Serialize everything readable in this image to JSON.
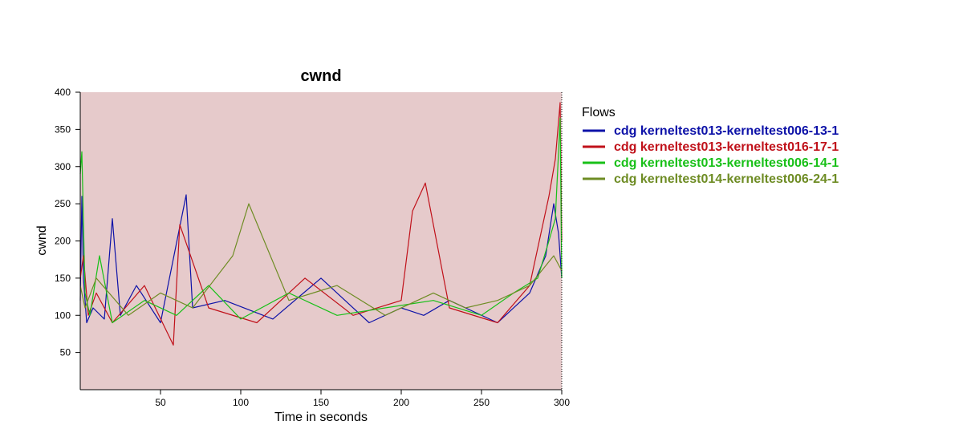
{
  "chart_data": {
    "type": "line",
    "title": "cwnd",
    "xlabel": "Time in seconds",
    "ylabel": "cwnd",
    "xlim": [
      0,
      300
    ],
    "ylim": [
      0,
      400
    ],
    "x_ticks": [
      50,
      100,
      150,
      200,
      250,
      300
    ],
    "y_ticks": [
      50,
      100,
      150,
      200,
      250,
      300,
      350,
      400
    ],
    "grid": false,
    "plot_background": "#e6cacb",
    "legend": {
      "title": "Flows",
      "placement": "right"
    },
    "series": [
      {
        "name": "cdg kerneltest013-kerneltest006-13-1",
        "color": "#0d12a8",
        "x": [
          0,
          1,
          2,
          4,
          8,
          15,
          20,
          25,
          35,
          50,
          66,
          70,
          90,
          120,
          150,
          180,
          200,
          214,
          230,
          260,
          280,
          290,
          295,
          298,
          300
        ],
        "y": [
          120,
          260,
          150,
          90,
          110,
          95,
          230,
          100,
          140,
          90,
          262,
          110,
          120,
          95,
          150,
          90,
          110,
          100,
          120,
          90,
          130,
          180,
          250,
          210,
          150
        ]
      },
      {
        "name": "cdg kerneltest013-kerneltest016-17-1",
        "color": "#c0111a",
        "x": [
          0,
          2,
          5,
          10,
          20,
          40,
          58,
          62,
          80,
          110,
          140,
          170,
          200,
          207,
          215,
          230,
          260,
          280,
          292,
          296,
          299,
          300
        ],
        "y": [
          150,
          180,
          100,
          130,
          90,
          140,
          60,
          222,
          110,
          90,
          150,
          100,
          120,
          240,
          278,
          110,
          90,
          140,
          260,
          310,
          386,
          200
        ]
      },
      {
        "name": "cdg kerneltest013-kerneltest006-14-1",
        "color": "#18c018",
        "x": [
          0,
          1,
          3,
          6,
          12,
          20,
          40,
          60,
          80,
          100,
          130,
          160,
          190,
          220,
          250,
          270,
          285,
          292,
          296,
          299,
          300
        ],
        "y": [
          290,
          320,
          130,
          100,
          180,
          90,
          120,
          100,
          140,
          95,
          130,
          100,
          110,
          120,
          100,
          130,
          150,
          200,
          230,
          365,
          150
        ]
      },
      {
        "name": "cdg kerneltest014-kerneltest006-24-1",
        "color": "#6e8c24",
        "x": [
          0,
          3,
          10,
          30,
          50,
          70,
          95,
          105,
          130,
          160,
          190,
          220,
          240,
          260,
          280,
          295,
          300
        ],
        "y": [
          140,
          110,
          150,
          100,
          130,
          110,
          180,
          250,
          120,
          140,
          100,
          130,
          110,
          120,
          140,
          180,
          160
        ]
      }
    ]
  }
}
